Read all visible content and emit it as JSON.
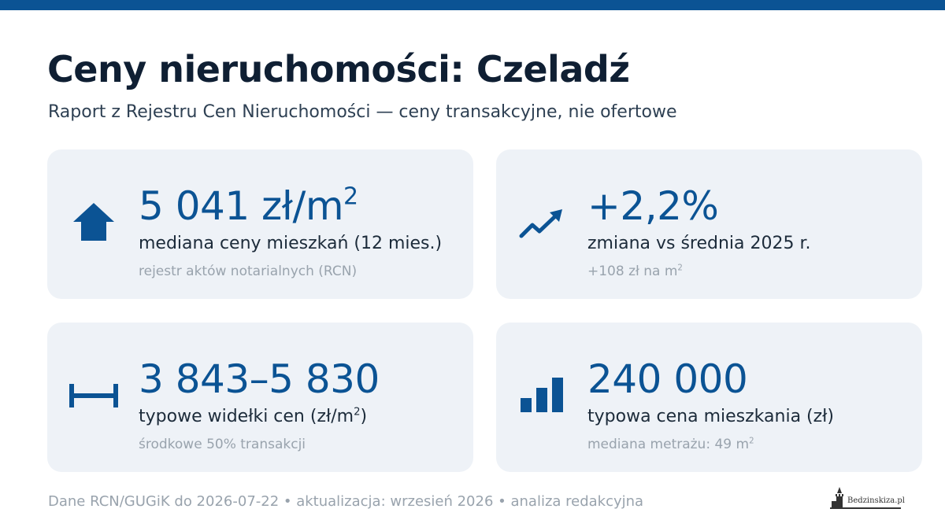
{
  "header": {
    "title": "Ceny nieruchomości: Czeladź",
    "subtitle": "Raport z Rejestru Cen Nieruchomości — ceny transakcyjne, nie ofertowe"
  },
  "cards": [
    {
      "icon": "house-icon",
      "value": "5 041 zł/m",
      "value_sup": "2",
      "label": "mediana ceny mieszkań (12 mies.)",
      "note": "rejestr aktów notarialnych (RCN)"
    },
    {
      "icon": "trend-up-icon",
      "value": "+2,2%",
      "label": "zmiana vs średnia 2025 r.",
      "note": "+108 zł na m",
      "note_sup": "2"
    },
    {
      "icon": "range-icon",
      "value": "3 843–5 830",
      "label": "typowe widełki cen (zł/m",
      "label_sup": "2",
      "label_end": ")",
      "note": "środkowe 50% transakcji"
    },
    {
      "icon": "bar-chart-icon",
      "value": "240 000",
      "label": "typowa cena mieszkania (zł)",
      "note": "mediana metrażu: 49 m",
      "note_sup": "2"
    }
  ],
  "footer": {
    "text": "Dane RCN/GUGiK do 2026-07-22 • aktualizacja: wrzesień 2026 • analiza redakcyjna"
  },
  "logo": {
    "text": "Bedzinskiza.pl"
  },
  "colors": {
    "accent": "#0b5394",
    "card_bg": "#eef2f7",
    "title": "#0f1f33",
    "muted": "#99a3ad"
  }
}
